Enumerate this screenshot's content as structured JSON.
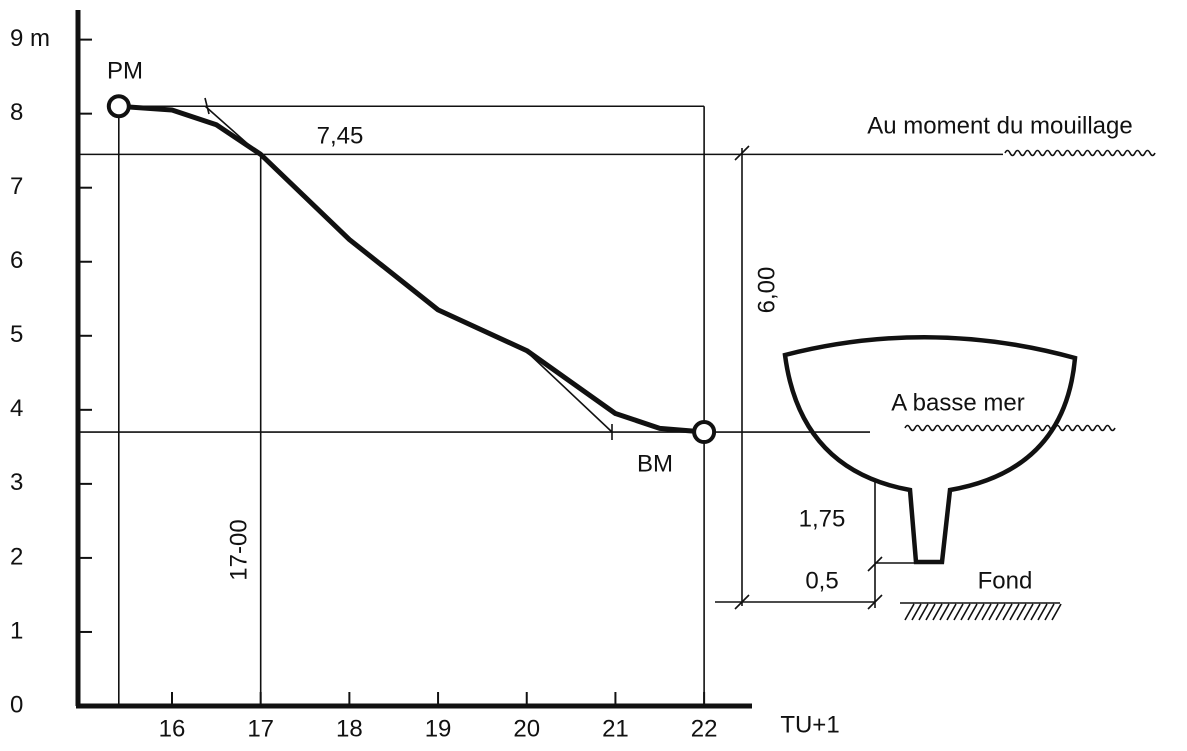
{
  "chart_data": {
    "type": "line",
    "x": [
      15.4,
      16,
      16.5,
      17,
      18,
      19,
      20,
      21,
      21.5,
      22
    ],
    "series": [
      {
        "color": "#111111",
        "values": [
          8.1,
          8.05,
          7.85,
          7.45,
          6.3,
          5.35,
          4.8,
          3.95,
          3.75,
          3.7
        ]
      }
    ],
    "xlim": [
      14.94,
      22.54
    ],
    "ylim": [
      0,
      9.4
    ],
    "xticks": [
      16,
      17,
      18,
      19,
      20,
      21,
      22
    ],
    "yticks": [
      0,
      1,
      2,
      3,
      4,
      5,
      6,
      7,
      8,
      {
        "value": 9,
        "label": "9 m"
      }
    ],
    "x_label": "TU+1",
    "annotations": {
      "pm": "PM",
      "bm": "BM",
      "level": "7,45",
      "time": "17-00",
      "range": "6,00",
      "mooring": "Au moment du mouillage",
      "low_tide": "A basse mer",
      "draft": "1,75",
      "clearance": "0,5",
      "bottom": "Fond"
    }
  }
}
